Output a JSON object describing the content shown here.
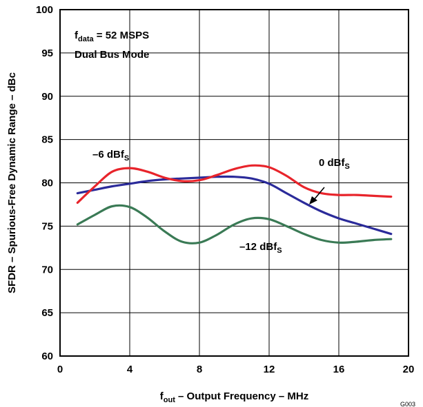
{
  "chart_data": {
    "type": "line",
    "title": "",
    "xlabel_main": "f",
    "xlabel_sub": "out",
    "xlabel_rest": " – Output Frequency – MHz",
    "ylabel": "SFDR – Spurious-Free Dynamic Range – dBc",
    "xlim": [
      0,
      20
    ],
    "ylim": [
      60,
      100
    ],
    "xticks": [
      0,
      4,
      8,
      12,
      16,
      20
    ],
    "yticks": [
      60,
      65,
      70,
      75,
      80,
      85,
      90,
      95,
      100
    ],
    "grid": true,
    "annotations": {
      "condition_main": "f",
      "condition_sub": "data",
      "condition_rest": " = 52 MSPS",
      "mode": "Dual Bus Mode"
    },
    "figure_code": "G003",
    "series": [
      {
        "label_main": "0 dBf",
        "label_sub": "S",
        "color": "#2b2b9a",
        "x": [
          1,
          2,
          3,
          4,
          5,
          6,
          7,
          8,
          9,
          10,
          11,
          12,
          13,
          14,
          15,
          16,
          17,
          18,
          19
        ],
        "y": [
          78.8,
          79.2,
          79.6,
          79.9,
          80.2,
          80.4,
          80.5,
          80.6,
          80.7,
          80.7,
          80.5,
          79.9,
          78.8,
          77.7,
          76.7,
          75.9,
          75.3,
          74.7,
          74.1
        ]
      },
      {
        "label_main": "–6 dBf",
        "label_sub": "S",
        "color": "#e8242b",
        "x": [
          1,
          2,
          3,
          4,
          5,
          6,
          7,
          8,
          9,
          10,
          11,
          12,
          13,
          14,
          15,
          16,
          17,
          18,
          19
        ],
        "y": [
          77.7,
          79.6,
          81.3,
          81.7,
          81.3,
          80.6,
          80.2,
          80.3,
          80.9,
          81.6,
          82.0,
          81.8,
          80.8,
          79.5,
          78.8,
          78.6,
          78.6,
          78.5,
          78.4
        ]
      },
      {
        "label_main": "–12 dBf",
        "label_sub": "S",
        "color": "#3a7a55",
        "x": [
          1,
          2,
          3,
          4,
          5,
          6,
          7,
          8,
          9,
          10,
          11,
          12,
          13,
          14,
          15,
          16,
          17,
          18,
          19
        ],
        "y": [
          75.2,
          76.3,
          77.3,
          77.2,
          76.0,
          74.4,
          73.2,
          73.1,
          74.0,
          75.2,
          75.9,
          75.8,
          75.0,
          74.1,
          73.4,
          73.1,
          73.2,
          73.4,
          73.5
        ]
      }
    ]
  }
}
